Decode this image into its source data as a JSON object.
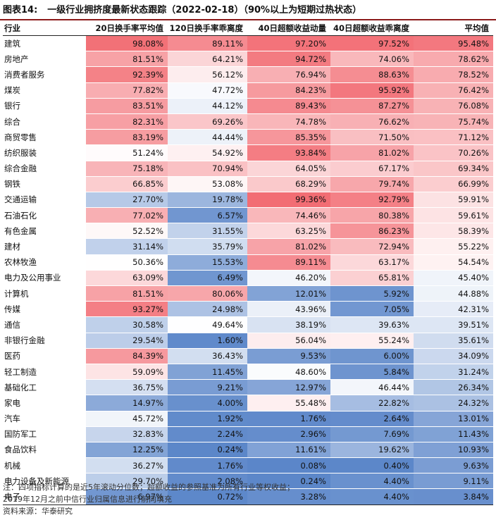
{
  "title": {
    "label": "图表14:",
    "text": "一级行业拥挤度最新状态跟踪（2022-02-18）（90%以上为短期过热状态）"
  },
  "columns": [
    "行业",
    "20日换手率平均值",
    "120日换手率乖离度",
    "40日超额收益动量",
    "40日超额收益乖离度",
    "平均值"
  ],
  "rows": [
    {
      "name": "建筑",
      "v": [
        98.08,
        89.11,
        97.2,
        97.52,
        95.48
      ],
      "t": [
        "98.08%",
        "89.11%",
        "97.20%",
        "97.52%",
        "95.48%"
      ]
    },
    {
      "name": "房地产",
      "v": [
        81.51,
        64.21,
        94.72,
        74.06,
        78.62
      ],
      "t": [
        "81.51%",
        "64.21%",
        "94.72%",
        "74.06%",
        "78.62%"
      ]
    },
    {
      "name": "消费者服务",
      "v": [
        92.39,
        56.12,
        76.94,
        88.63,
        78.52
      ],
      "t": [
        "92.39%",
        "56.12%",
        "76.94%",
        "88.63%",
        "78.52%"
      ]
    },
    {
      "name": "煤炭",
      "v": [
        77.82,
        47.72,
        84.23,
        95.92,
        76.42
      ],
      "t": [
        "77.82%",
        "47.72%",
        "84.23%",
        "95.92%",
        "76.42%"
      ]
    },
    {
      "name": "银行",
      "v": [
        83.51,
        44.12,
        89.43,
        87.27,
        76.08
      ],
      "t": [
        "83.51%",
        "44.12%",
        "89.43%",
        "87.27%",
        "76.08%"
      ]
    },
    {
      "name": "综合",
      "v": [
        82.31,
        69.26,
        74.78,
        76.62,
        75.74
      ],
      "t": [
        "82.31%",
        "69.26%",
        "74.78%",
        "76.62%",
        "75.74%"
      ]
    },
    {
      "name": "商贸零售",
      "v": [
        83.19,
        44.44,
        85.35,
        71.5,
        71.12
      ],
      "t": [
        "83.19%",
        "44.44%",
        "85.35%",
        "71.50%",
        "71.12%"
      ]
    },
    {
      "name": "纺织服装",
      "v": [
        51.24,
        54.92,
        93.84,
        81.02,
        70.26
      ],
      "t": [
        "51.24%",
        "54.92%",
        "93.84%",
        "81.02%",
        "70.26%"
      ]
    },
    {
      "name": "综合金融",
      "v": [
        75.18,
        70.94,
        64.05,
        67.17,
        69.34
      ],
      "t": [
        "75.18%",
        "70.94%",
        "64.05%",
        "67.17%",
        "69.34%"
      ]
    },
    {
      "name": "钢铁",
      "v": [
        66.85,
        53.08,
        68.29,
        79.74,
        66.99
      ],
      "t": [
        "66.85%",
        "53.08%",
        "68.29%",
        "79.74%",
        "66.99%"
      ]
    },
    {
      "name": "交通运输",
      "v": [
        27.7,
        19.78,
        99.36,
        92.79,
        59.91
      ],
      "t": [
        "27.70%",
        "19.78%",
        "99.36%",
        "92.79%",
        "59.91%"
      ]
    },
    {
      "name": "石油石化",
      "v": [
        77.02,
        6.57,
        74.46,
        80.38,
        59.61
      ],
      "t": [
        "77.02%",
        "6.57%",
        "74.46%",
        "80.38%",
        "59.61%"
      ]
    },
    {
      "name": "有色金属",
      "v": [
        52.52,
        31.55,
        63.25,
        86.23,
        58.39
      ],
      "t": [
        "52.52%",
        "31.55%",
        "63.25%",
        "86.23%",
        "58.39%"
      ]
    },
    {
      "name": "建材",
      "v": [
        31.14,
        35.79,
        81.02,
        72.94,
        55.22
      ],
      "t": [
        "31.14%",
        "35.79%",
        "81.02%",
        "72.94%",
        "55.22%"
      ]
    },
    {
      "name": "农林牧渔",
      "v": [
        50.36,
        15.53,
        89.11,
        63.17,
        54.54
      ],
      "t": [
        "50.36%",
        "15.53%",
        "89.11%",
        "63.17%",
        "54.54%"
      ]
    },
    {
      "name": "电力及公用事业",
      "v": [
        63.09,
        6.49,
        46.2,
        65.81,
        45.4
      ],
      "t": [
        "63.09%",
        "6.49%",
        "46.20%",
        "65.81%",
        "45.40%"
      ]
    },
    {
      "name": "计算机",
      "v": [
        81.51,
        80.06,
        12.01,
        5.92,
        44.88
      ],
      "t": [
        "81.51%",
        "80.06%",
        "12.01%",
        "5.92%",
        "44.88%"
      ]
    },
    {
      "name": "传媒",
      "v": [
        93.27,
        24.98,
        43.96,
        7.05,
        42.31
      ],
      "t": [
        "93.27%",
        "24.98%",
        "43.96%",
        "7.05%",
        "42.31%"
      ]
    },
    {
      "name": "通信",
      "v": [
        30.58,
        49.64,
        38.19,
        39.63,
        39.51
      ],
      "t": [
        "30.58%",
        "49.64%",
        "38.19%",
        "39.63%",
        "39.51%"
      ]
    },
    {
      "name": "非银行金融",
      "v": [
        29.54,
        1.6,
        56.04,
        55.24,
        35.61
      ],
      "t": [
        "29.54%",
        "1.60%",
        "56.04%",
        "55.24%",
        "35.61%"
      ]
    },
    {
      "name": "医药",
      "v": [
        84.39,
        36.43,
        9.53,
        6.0,
        34.09
      ],
      "t": [
        "84.39%",
        "36.43%",
        "9.53%",
        "6.00%",
        "34.09%"
      ]
    },
    {
      "name": "轻工制造",
      "v": [
        59.09,
        11.45,
        48.6,
        5.84,
        31.24
      ],
      "t": [
        "59.09%",
        "11.45%",
        "48.60%",
        "5.84%",
        "31.24%"
      ]
    },
    {
      "name": "基础化工",
      "v": [
        36.75,
        9.21,
        12.97,
        46.44,
        26.34
      ],
      "t": [
        "36.75%",
        "9.21%",
        "12.97%",
        "46.44%",
        "26.34%"
      ]
    },
    {
      "name": "家电",
      "v": [
        14.97,
        4.0,
        55.48,
        22.82,
        24.32
      ],
      "t": [
        "14.97%",
        "4.00%",
        "55.48%",
        "22.82%",
        "24.32%"
      ]
    },
    {
      "name": "汽车",
      "v": [
        45.72,
        1.92,
        1.76,
        2.64,
        13.01
      ],
      "t": [
        "45.72%",
        "1.92%",
        "1.76%",
        "2.64%",
        "13.01%"
      ]
    },
    {
      "name": "国防军工",
      "v": [
        32.83,
        2.24,
        2.96,
        7.69,
        11.43
      ],
      "t": [
        "32.83%",
        "2.24%",
        "2.96%",
        "7.69%",
        "11.43%"
      ]
    },
    {
      "name": "食品饮料",
      "v": [
        12.25,
        0.24,
        11.61,
        19.62,
        10.93
      ],
      "t": [
        "12.25%",
        "0.24%",
        "11.61%",
        "19.62%",
        "10.93%"
      ]
    },
    {
      "name": "机械",
      "v": [
        36.27,
        1.76,
        0.08,
        0.4,
        9.63
      ],
      "t": [
        "36.27%",
        "1.76%",
        "0.08%",
        "0.40%",
        "9.63%"
      ]
    },
    {
      "name": "电力设备及新能源",
      "v": [
        29.7,
        2.08,
        0.24,
        4.4,
        9.11
      ],
      "t": [
        "29.70%",
        "2.08%",
        "0.24%",
        "4.40%",
        "9.11%"
      ]
    },
    {
      "name": "电子",
      "v": [
        6.97,
        0.72,
        3.28,
        4.4,
        3.84
      ],
      "t": [
        "6.97%",
        "0.72%",
        "3.28%",
        "4.40%",
        "3.84%"
      ]
    }
  ],
  "colors": {
    "high": "#f26b72",
    "mid": "#ffffff",
    "low": "#5b86c9",
    "title_rule": "#8b1a1a"
  },
  "notes": {
    "line1": "注：四项指标计算的是近5年滚动分位数；超额收益的参照基准为所有行业等权收益；",
    "line2": "2019年12月之前中信行业归属信息进行前向填充",
    "source": "资料来源：华泰研究"
  }
}
